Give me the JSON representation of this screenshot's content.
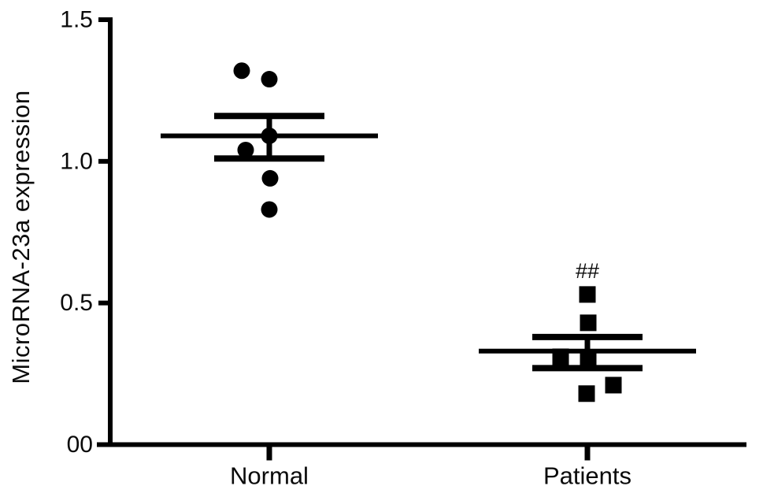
{
  "chart_data": {
    "type": "scatter",
    "title": "",
    "xlabel": "",
    "ylabel": "MicroRNA-23a expression",
    "ylim": [
      0,
      1.5
    ],
    "grid": false,
    "legend": "none",
    "marker_color": "#000000",
    "axis_color": "#000000",
    "yticks": [
      {
        "value": 0,
        "label": "00"
      },
      {
        "value": 0.5,
        "label": "0.5"
      },
      {
        "value": 1.0,
        "label": "1.0"
      },
      {
        "value": 1.5,
        "label": "1.5"
      }
    ],
    "categories": [
      "Normal",
      "Patients"
    ],
    "groups": [
      {
        "label": "Normal",
        "marker": "circle",
        "annotation": "",
        "mean": 1.09,
        "sem_upper": 1.16,
        "sem_lower": 1.01,
        "points": [
          {
            "value": 1.32,
            "dx": -35
          },
          {
            "value": 1.29,
            "dx": 0
          },
          {
            "value": 1.09,
            "dx": 0
          },
          {
            "value": 1.04,
            "dx": -30
          },
          {
            "value": 0.94,
            "dx": 1
          },
          {
            "value": 0.83,
            "dx": 0
          }
        ]
      },
      {
        "label": "Patients",
        "marker": "square",
        "annotation": "##",
        "mean": 0.33,
        "sem_upper": 0.38,
        "sem_lower": 0.27,
        "points": [
          {
            "value": 0.53,
            "dx": 0
          },
          {
            "value": 0.43,
            "dx": 1
          },
          {
            "value": 0.31,
            "dx": -34
          },
          {
            "value": 0.3,
            "dx": 1
          },
          {
            "value": 0.21,
            "dx": 33
          },
          {
            "value": 0.18,
            "dx": -1
          }
        ]
      }
    ]
  }
}
